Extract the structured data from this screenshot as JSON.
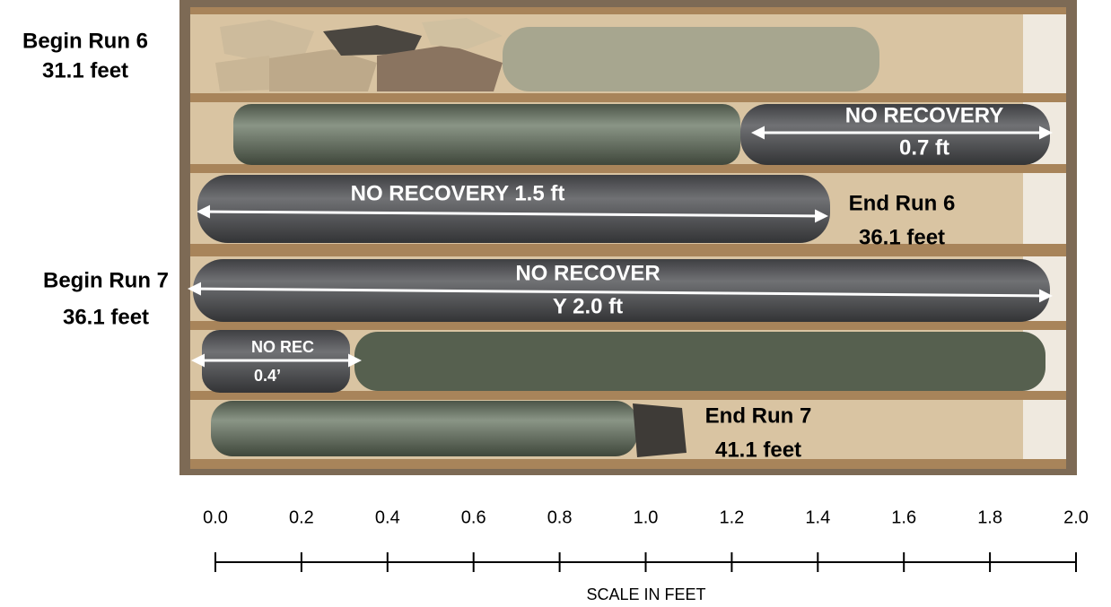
{
  "run_markers": [
    {
      "lines": [
        "Begin Run 6",
        "31.1 feet"
      ]
    },
    {
      "lines": [
        "End Run 6",
        "36.1 feet"
      ]
    },
    {
      "lines": [
        "Begin Run 7",
        "36.1 feet"
      ]
    },
    {
      "lines": [
        "End Run 7",
        "41.1 feet"
      ]
    }
  ],
  "no_recovery": [
    {
      "lines": [
        "NO RECOVERY",
        "0.7 ft"
      ]
    },
    {
      "lines": [
        "NO RECOVERY 1.5 ft"
      ]
    },
    {
      "lines": [
        "NO RECOVER",
        "Y 2.0 ft"
      ]
    },
    {
      "lines": [
        "NO REC",
        "0.4’"
      ]
    }
  ],
  "scale": {
    "title": "SCALE IN FEET",
    "range": [
      0,
      2
    ],
    "ticks": [
      {
        "value": 0,
        "label": "0.0"
      },
      {
        "value": 0.2,
        "label": "0.2"
      },
      {
        "value": 0.4,
        "label": "0.4"
      },
      {
        "value": 0.6,
        "label": "0.6"
      },
      {
        "value": 0.8,
        "label": "0.8"
      },
      {
        "value": 1,
        "label": "1.0"
      },
      {
        "value": 1.2,
        "label": "1.2"
      },
      {
        "value": 1.4,
        "label": "1.4"
      },
      {
        "value": 1.6,
        "label": "1.6"
      },
      {
        "value": 1.8,
        "label": "1.8"
      },
      {
        "value": 2,
        "label": "2.0"
      }
    ]
  }
}
